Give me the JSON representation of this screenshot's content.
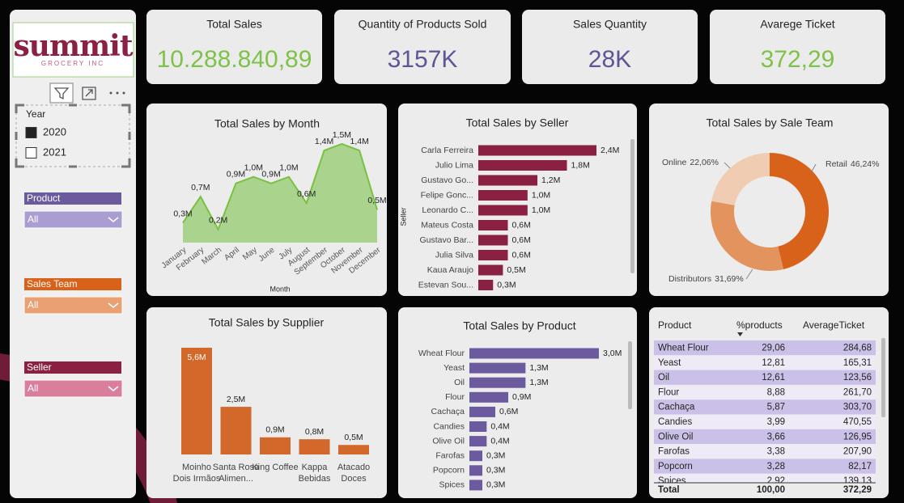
{
  "logo": {
    "name": "summit",
    "tagline": "GROCERY INC"
  },
  "kpis": [
    {
      "title": "Total Sales",
      "value": "10.288.840,89",
      "color": "#7fc24a"
    },
    {
      "title": "Quantity of Products Sold",
      "value": "3157K",
      "color": "#5e5594"
    },
    {
      "title": "Sales Quantity",
      "value": "28K",
      "color": "#5e5594"
    },
    {
      "title": "Avarege Ticket",
      "value": "372,29",
      "color": "#7fc24a"
    }
  ],
  "year_slicer": {
    "title": "Year",
    "options": [
      "2020",
      "2021"
    ],
    "checked": [
      true,
      false
    ]
  },
  "filters": [
    {
      "title": "Product",
      "value": "All",
      "color": "#6b5b9e",
      "box_color": "#a99dd1"
    },
    {
      "title": "Sales Team",
      "value": "All",
      "color": "#d9621b",
      "box_color": "#e9a072"
    },
    {
      "title": "Seller",
      "value": "All",
      "color": "#8b2142",
      "box_color": "#d97f9c"
    }
  ],
  "chart_data": [
    {
      "type": "area",
      "title": "Total Sales by Month",
      "x_label": "Month",
      "categories": [
        "January",
        "February",
        "March",
        "April",
        "May",
        "June",
        "July",
        "August",
        "September",
        "October",
        "November",
        "December"
      ],
      "values": [
        0.3,
        0.7,
        0.2,
        0.9,
        1.0,
        0.9,
        1.0,
        0.6,
        1.4,
        1.5,
        1.4,
        0.5
      ],
      "value_labels": [
        "0,3M",
        "0,7M",
        "0,2M",
        "0,9M",
        "1,0M",
        "0,9M",
        "1,0M",
        "0,6M",
        "1,4M",
        "1,5M",
        "1,4M",
        "0,5M"
      ],
      "color": "#aad48d",
      "line_color": "#7ac142"
    },
    {
      "type": "hbar",
      "title": "Total Sales by Seller",
      "y_label": "Seller",
      "categories": [
        "Carla Ferreira",
        "Julio Lima",
        "Gustavo Go...",
        "Felipe Gonc...",
        "Leonardo C...",
        "Mateus Costa",
        "Gustavo Bar...",
        "Julia Silva",
        "Kaua Araujo",
        "Estevan Sou..."
      ],
      "values": [
        2.4,
        1.8,
        1.2,
        1.0,
        1.0,
        0.6,
        0.6,
        0.6,
        0.5,
        0.3
      ],
      "value_labels": [
        "2,4M",
        "1,8M",
        "1,2M",
        "1,0M",
        "1,0M",
        "0,6M",
        "0,6M",
        "0,6M",
        "0,5M",
        "0,3M"
      ],
      "color": "#8b2142"
    },
    {
      "type": "donut",
      "title": "Total Sales by Sale Team",
      "categories": [
        "Retail",
        "Distributors",
        "Online"
      ],
      "values": [
        46.24,
        31.69,
        22.06
      ],
      "value_labels": [
        "46,24%",
        "31,69%",
        "22,06%"
      ],
      "colors": [
        "#d9621b",
        "#e2935e",
        "#f0ccb2"
      ]
    },
    {
      "type": "bar",
      "title": "Total Sales by Supplier",
      "categories": [
        "Moinho Dois Irmãos",
        "Santa Rosa Alimen...",
        "King Coffee",
        "Kappa Bebidas",
        "Atacado Doces"
      ],
      "values": [
        5.6,
        2.5,
        0.9,
        0.8,
        0.5
      ],
      "value_labels": [
        "5,6M",
        "2,5M",
        "0,9M",
        "0,8M",
        "0,5M"
      ],
      "color": "#d2692a"
    },
    {
      "type": "hbar",
      "title": "Total Sales by Product",
      "categories": [
        "Wheat Flour",
        "Yeast",
        "Oil",
        "Flour",
        "Cachaça",
        "Candies",
        "Olive Oil",
        "Farofas",
        "Popcorn",
        "Spices"
      ],
      "values": [
        3.0,
        1.3,
        1.3,
        0.9,
        0.6,
        0.4,
        0.4,
        0.3,
        0.3,
        0.3
      ],
      "value_labels": [
        "3,0M",
        "1,3M",
        "1,3M",
        "0,9M",
        "0,6M",
        "0,4M",
        "0,4M",
        "0,3M",
        "0,3M",
        "0,3M"
      ],
      "color": "#6b5b9e"
    }
  ],
  "table": {
    "columns": [
      "Product",
      "%products",
      "AverageTicket"
    ],
    "rows": [
      [
        "Wheat Flour",
        "29,06",
        "284,68"
      ],
      [
        "Yeast",
        "12,81",
        "165,31"
      ],
      [
        "Oil",
        "12,61",
        "123,56"
      ],
      [
        "Flour",
        "8,88",
        "261,70"
      ],
      [
        "Cachaça",
        "5,87",
        "303,70"
      ],
      [
        "Candies",
        "3,99",
        "470,55"
      ],
      [
        "Olive Oil",
        "3,66",
        "126,95"
      ],
      [
        "Farofas",
        "3,38",
        "207,90"
      ],
      [
        "Popcorn",
        "3,28",
        "82,17"
      ],
      [
        "Spices",
        "2,92",
        "139,13"
      ]
    ],
    "total": [
      "Total",
      "100,00",
      "372,29"
    ],
    "row_colors": [
      "#cbc1e8",
      "#eeebf6"
    ]
  }
}
